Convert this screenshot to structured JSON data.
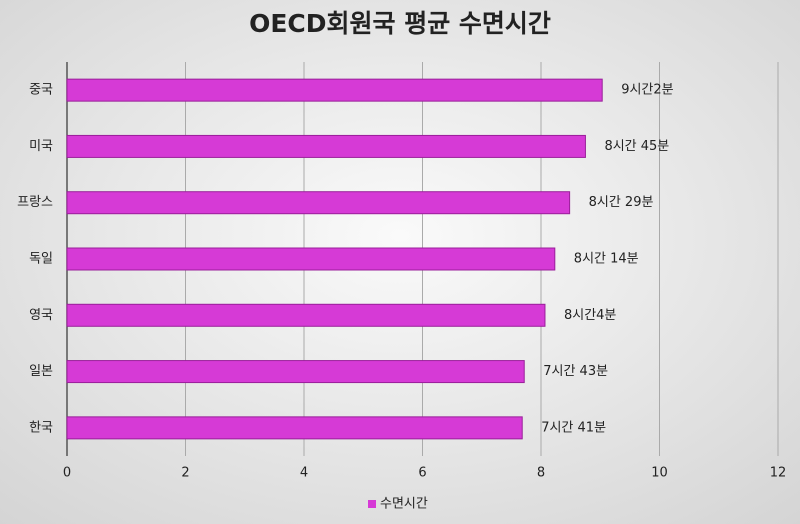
{
  "chart_data": {
    "type": "hbar",
    "title": "OECD회원국 평균 수면시간",
    "categories": [
      "중국",
      "미국",
      "프랑스",
      "독일",
      "영국",
      "일본",
      "한국"
    ],
    "series": [
      {
        "name": "수면시간",
        "color": "#d63ad6",
        "values": [
          9.033,
          8.75,
          8.483,
          8.233,
          8.067,
          7.717,
          7.683
        ],
        "value_labels": [
          "9시간2분",
          "8시간 45분",
          "8시간 29분",
          "8시간 14분",
          "8시간4분",
          "7시간 43분",
          "7시간 41분"
        ]
      }
    ],
    "xlim": [
      0,
      12
    ],
    "xticks": [
      0,
      2,
      4,
      6,
      8,
      10,
      12
    ],
    "grid": true,
    "legend": "bottom"
  }
}
